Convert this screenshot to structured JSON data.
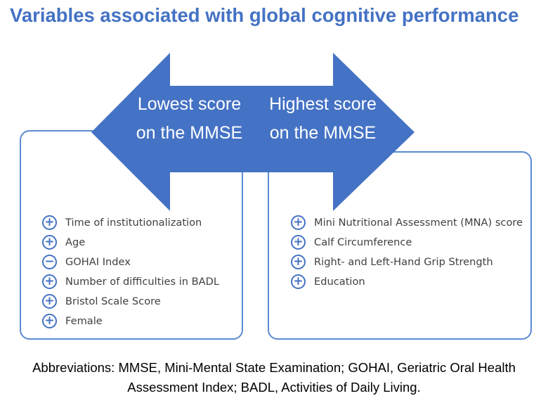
{
  "title": "Variables associated with global cognitive performance",
  "arrow": {
    "color": "#4472c4",
    "left_label_line1": "Lowest score",
    "left_label_line2": "on the MMSE",
    "right_label_line1": "Highest score",
    "right_label_line2": "on the MMSE"
  },
  "left_panel": {
    "items": [
      {
        "sign": "+",
        "label": "Time of institutionalization"
      },
      {
        "sign": "+",
        "label": "Age"
      },
      {
        "sign": "−",
        "label": "GOHAI Index"
      },
      {
        "sign": "+",
        "label": "Number of difficulties in BADL"
      },
      {
        "sign": "+",
        "label": "Bristol Scale Score"
      },
      {
        "sign": "+",
        "label": "Female"
      }
    ]
  },
  "right_panel": {
    "items": [
      {
        "sign": "+",
        "label": "Mini Nutritional Assessment (MNA) score"
      },
      {
        "sign": "+",
        "label": "Calf Circumference"
      },
      {
        "sign": "+",
        "label": "Right- and Left-Hand Grip Strength"
      },
      {
        "sign": "+",
        "label": "Education"
      }
    ]
  },
  "footnote": {
    "line1": "Abbreviations: MMSE, Mini-Mental State Examination; GOHAI, Geriatric Oral Health",
    "line2": "Assessment Index; BADL, Activities of Daily Living."
  }
}
